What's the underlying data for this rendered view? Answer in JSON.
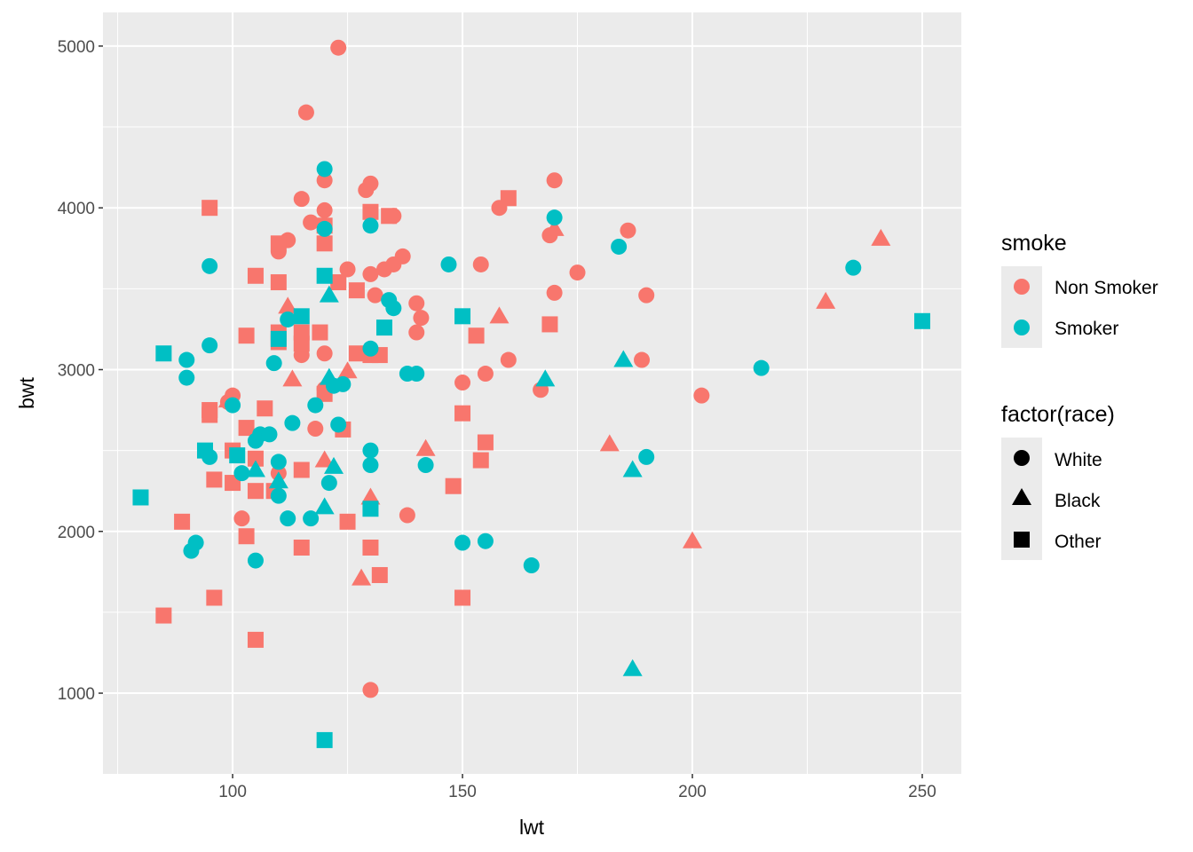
{
  "chart_data": {
    "type": "scatter",
    "title": "",
    "xlabel": "lwt",
    "ylabel": "bwt",
    "xlim": [
      71.8,
      258.5
    ],
    "ylim": [
      501,
      5208
    ],
    "xticks": [
      100,
      150,
      200,
      250
    ],
    "yticks": [
      1000,
      2000,
      3000,
      4000,
      5000
    ],
    "grid": true,
    "legend_position": "right",
    "colors": {
      "Non Smoker": "#F8766D",
      "Smoker": "#00BFC4",
      "panel": "#EBEBEB"
    },
    "legends": [
      {
        "title": "smoke",
        "entries": [
          "Non Smoker",
          "Smoker"
        ]
      },
      {
        "title": "factor(race)",
        "entries": [
          "White",
          "Black",
          "Other"
        ]
      }
    ],
    "point_fields": [
      "lwt",
      "bwt",
      "smoke",
      "race"
    ],
    "points": [
      [
        123,
        4990,
        "Non Smoker",
        "White"
      ],
      [
        116,
        4590,
        "Non Smoker",
        "White"
      ],
      [
        120,
        4170,
        "Non Smoker",
        "White"
      ],
      [
        130,
        4150,
        "Non Smoker",
        "White"
      ],
      [
        129,
        4110,
        "Non Smoker",
        "White"
      ],
      [
        115,
        4055,
        "Non Smoker",
        "White"
      ],
      [
        120,
        3985,
        "Non Smoker",
        "White"
      ],
      [
        117,
        3910,
        "Non Smoker",
        "White"
      ],
      [
        135,
        3950,
        "Non Smoker",
        "White"
      ],
      [
        170,
        4170,
        "Non Smoker",
        "White"
      ],
      [
        158,
        4000,
        "Non Smoker",
        "White"
      ],
      [
        186,
        3860,
        "Non Smoker",
        "White"
      ],
      [
        169,
        3830,
        "Non Smoker",
        "White"
      ],
      [
        112,
        3800,
        "Non Smoker",
        "White"
      ],
      [
        110,
        3730,
        "Non Smoker",
        "White"
      ],
      [
        137,
        3700,
        "Non Smoker",
        "White"
      ],
      [
        135,
        3650,
        "Non Smoker",
        "White"
      ],
      [
        125,
        3620,
        "Non Smoker",
        "White"
      ],
      [
        130,
        3590,
        "Non Smoker",
        "White"
      ],
      [
        133,
        3620,
        "Non Smoker",
        "White"
      ],
      [
        154,
        3650,
        "Non Smoker",
        "White"
      ],
      [
        175,
        3600,
        "Non Smoker",
        "White"
      ],
      [
        170,
        3475,
        "Non Smoker",
        "White"
      ],
      [
        190,
        3460,
        "Non Smoker",
        "White"
      ],
      [
        131,
        3460,
        "Non Smoker",
        "White"
      ],
      [
        140,
        3410,
        "Non Smoker",
        "White"
      ],
      [
        141,
        3320,
        "Non Smoker",
        "White"
      ],
      [
        140,
        3230,
        "Non Smoker",
        "White"
      ],
      [
        115,
        3090,
        "Non Smoker",
        "White"
      ],
      [
        120,
        3100,
        "Non Smoker",
        "White"
      ],
      [
        160,
        3060,
        "Non Smoker",
        "White"
      ],
      [
        189,
        3060,
        "Non Smoker",
        "White"
      ],
      [
        155,
        2975,
        "Non Smoker",
        "White"
      ],
      [
        150,
        2920,
        "Non Smoker",
        "White"
      ],
      [
        167,
        2875,
        "Non Smoker",
        "White"
      ],
      [
        202,
        2840,
        "Non Smoker",
        "White"
      ],
      [
        100,
        2840,
        "Non Smoker",
        "White"
      ],
      [
        99,
        2800,
        "Non Smoker",
        "White"
      ],
      [
        120,
        2880,
        "Non Smoker",
        "White"
      ],
      [
        118,
        2635,
        "Non Smoker",
        "White"
      ],
      [
        102,
        2080,
        "Non Smoker",
        "White"
      ],
      [
        138,
        2100,
        "Non Smoker",
        "White"
      ],
      [
        130,
        1020,
        "Non Smoker",
        "White"
      ],
      [
        110,
        2360,
        "Non Smoker",
        "White"
      ],
      [
        241,
        3810,
        "Non Smoker",
        "Black"
      ],
      [
        229,
        3420,
        "Non Smoker",
        "Black"
      ],
      [
        158,
        3330,
        "Non Smoker",
        "Black"
      ],
      [
        170,
        3870,
        "Non Smoker",
        "Black"
      ],
      [
        182,
        2540,
        "Non Smoker",
        "Black"
      ],
      [
        200,
        1940,
        "Non Smoker",
        "Black"
      ],
      [
        142,
        2510,
        "Non Smoker",
        "Black"
      ],
      [
        130,
        2210,
        "Non Smoker",
        "Black"
      ],
      [
        128,
        1710,
        "Non Smoker",
        "Black"
      ],
      [
        113,
        2940,
        "Non Smoker",
        "Black"
      ],
      [
        112,
        3390,
        "Non Smoker",
        "Black"
      ],
      [
        125,
        2990,
        "Non Smoker",
        "Black"
      ],
      [
        120,
        2440,
        "Non Smoker",
        "Black"
      ],
      [
        99,
        2810,
        "Non Smoker",
        "Black"
      ],
      [
        95,
        4000,
        "Non Smoker",
        "Other"
      ],
      [
        160,
        4060,
        "Non Smoker",
        "Other"
      ],
      [
        130,
        3975,
        "Non Smoker",
        "Other"
      ],
      [
        120,
        3890,
        "Non Smoker",
        "Other"
      ],
      [
        120,
        3780,
        "Non Smoker",
        "Other"
      ],
      [
        110,
        3780,
        "Non Smoker",
        "Other"
      ],
      [
        105,
        3580,
        "Non Smoker",
        "Other"
      ],
      [
        110,
        3540,
        "Non Smoker",
        "Other"
      ],
      [
        123,
        3540,
        "Non Smoker",
        "Other"
      ],
      [
        127,
        3490,
        "Non Smoker",
        "Other"
      ],
      [
        134,
        3950,
        "Non Smoker",
        "Other"
      ],
      [
        169,
        3280,
        "Non Smoker",
        "Other"
      ],
      [
        153,
        3210,
        "Non Smoker",
        "Other"
      ],
      [
        103,
        3210,
        "Non Smoker",
        "Other"
      ],
      [
        110,
        3230,
        "Non Smoker",
        "Other"
      ],
      [
        115,
        3230,
        "Non Smoker",
        "Other"
      ],
      [
        115,
        3160,
        "Non Smoker",
        "Other"
      ],
      [
        119,
        3230,
        "Non Smoker",
        "Other"
      ],
      [
        110,
        3170,
        "Non Smoker",
        "Other"
      ],
      [
        130,
        3090,
        "Non Smoker",
        "Other"
      ],
      [
        132,
        3090,
        "Non Smoker",
        "Other"
      ],
      [
        127,
        3100,
        "Non Smoker",
        "Other"
      ],
      [
        95,
        2750,
        "Non Smoker",
        "Other"
      ],
      [
        95,
        2720,
        "Non Smoker",
        "Other"
      ],
      [
        107,
        2760,
        "Non Smoker",
        "Other"
      ],
      [
        150,
        2730,
        "Non Smoker",
        "Other"
      ],
      [
        120,
        2850,
        "Non Smoker",
        "Other"
      ],
      [
        103,
        2640,
        "Non Smoker",
        "Other"
      ],
      [
        124,
        2630,
        "Non Smoker",
        "Other"
      ],
      [
        105,
        2450,
        "Non Smoker",
        "Other"
      ],
      [
        115,
        2380,
        "Non Smoker",
        "Other"
      ],
      [
        100,
        2500,
        "Non Smoker",
        "Other"
      ],
      [
        100,
        2300,
        "Non Smoker",
        "Other"
      ],
      [
        96,
        2320,
        "Non Smoker",
        "Other"
      ],
      [
        105,
        2250,
        "Non Smoker",
        "Other"
      ],
      [
        109,
        2250,
        "Non Smoker",
        "Other"
      ],
      [
        148,
        2280,
        "Non Smoker",
        "Other"
      ],
      [
        154,
        2440,
        "Non Smoker",
        "Other"
      ],
      [
        155,
        2550,
        "Non Smoker",
        "Other"
      ],
      [
        89,
        2060,
        "Non Smoker",
        "Other"
      ],
      [
        125,
        2060,
        "Non Smoker",
        "Other"
      ],
      [
        103,
        1970,
        "Non Smoker",
        "Other"
      ],
      [
        130,
        1900,
        "Non Smoker",
        "Other"
      ],
      [
        115,
        1900,
        "Non Smoker",
        "Other"
      ],
      [
        132,
        1730,
        "Non Smoker",
        "Other"
      ],
      [
        96,
        1590,
        "Non Smoker",
        "Other"
      ],
      [
        150,
        1590,
        "Non Smoker",
        "Other"
      ],
      [
        85,
        1480,
        "Non Smoker",
        "Other"
      ],
      [
        105,
        1330,
        "Non Smoker",
        "Other"
      ],
      [
        120,
        4240,
        "Smoker",
        "White"
      ],
      [
        130,
        3890,
        "Smoker",
        "White"
      ],
      [
        170,
        3940,
        "Smoker",
        "White"
      ],
      [
        184,
        3760,
        "Smoker",
        "White"
      ],
      [
        235,
        3630,
        "Smoker",
        "White"
      ],
      [
        147,
        3650,
        "Smoker",
        "White"
      ],
      [
        95,
        3640,
        "Smoker",
        "White"
      ],
      [
        134,
        3430,
        "Smoker",
        "White"
      ],
      [
        135,
        3380,
        "Smoker",
        "White"
      ],
      [
        95,
        3150,
        "Smoker",
        "White"
      ],
      [
        90,
        3060,
        "Smoker",
        "White"
      ],
      [
        90,
        2950,
        "Smoker",
        "White"
      ],
      [
        109,
        3040,
        "Smoker",
        "White"
      ],
      [
        130,
        3130,
        "Smoker",
        "White"
      ],
      [
        138,
        2975,
        "Smoker",
        "White"
      ],
      [
        140,
        2975,
        "Smoker",
        "White"
      ],
      [
        215,
        3010,
        "Smoker",
        "White"
      ],
      [
        100,
        2780,
        "Smoker",
        "White"
      ],
      [
        118,
        2780,
        "Smoker",
        "White"
      ],
      [
        106,
        2600,
        "Smoker",
        "White"
      ],
      [
        108,
        2600,
        "Smoker",
        "White"
      ],
      [
        113,
        2670,
        "Smoker",
        "White"
      ],
      [
        123,
        2660,
        "Smoker",
        "White"
      ],
      [
        105,
        2560,
        "Smoker",
        "White"
      ],
      [
        130,
        2500,
        "Smoker",
        "White"
      ],
      [
        130,
        2410,
        "Smoker",
        "White"
      ],
      [
        110,
        2430,
        "Smoker",
        "White"
      ],
      [
        102,
        2360,
        "Smoker",
        "White"
      ],
      [
        95,
        2460,
        "Smoker",
        "White"
      ],
      [
        142,
        2410,
        "Smoker",
        "White"
      ],
      [
        190,
        2460,
        "Smoker",
        "White"
      ],
      [
        121,
        2300,
        "Smoker",
        "White"
      ],
      [
        110,
        2220,
        "Smoker",
        "White"
      ],
      [
        112,
        2080,
        "Smoker",
        "White"
      ],
      [
        117,
        2080,
        "Smoker",
        "White"
      ],
      [
        92,
        1930,
        "Smoker",
        "White"
      ],
      [
        91,
        1880,
        "Smoker",
        "White"
      ],
      [
        105,
        1820,
        "Smoker",
        "White"
      ],
      [
        150,
        1930,
        "Smoker",
        "White"
      ],
      [
        155,
        1940,
        "Smoker",
        "White"
      ],
      [
        165,
        1790,
        "Smoker",
        "White"
      ],
      [
        124,
        2910,
        "Smoker",
        "White"
      ],
      [
        122,
        2900,
        "Smoker",
        "White"
      ],
      [
        112,
        3310,
        "Smoker",
        "White"
      ],
      [
        120,
        3870,
        "Smoker",
        "White"
      ],
      [
        121,
        3460,
        "Smoker",
        "Black"
      ],
      [
        185,
        3060,
        "Smoker",
        "Black"
      ],
      [
        168,
        2940,
        "Smoker",
        "Black"
      ],
      [
        187,
        2380,
        "Smoker",
        "Black"
      ],
      [
        187,
        1150,
        "Smoker",
        "Black"
      ],
      [
        121,
        2950,
        "Smoker",
        "Black"
      ],
      [
        122,
        2400,
        "Smoker",
        "Black"
      ],
      [
        120,
        2150,
        "Smoker",
        "Black"
      ],
      [
        110,
        2310,
        "Smoker",
        "Black"
      ],
      [
        105,
        2380,
        "Smoker",
        "Black"
      ],
      [
        120,
        3580,
        "Smoker",
        "Other"
      ],
      [
        115,
        3330,
        "Smoker",
        "Other"
      ],
      [
        150,
        3330,
        "Smoker",
        "Other"
      ],
      [
        133,
        3260,
        "Smoker",
        "Other"
      ],
      [
        110,
        3190,
        "Smoker",
        "Other"
      ],
      [
        85,
        3100,
        "Smoker",
        "Other"
      ],
      [
        94,
        2500,
        "Smoker",
        "Other"
      ],
      [
        101,
        2470,
        "Smoker",
        "Other"
      ],
      [
        80,
        2210,
        "Smoker",
        "Other"
      ],
      [
        130,
        2140,
        "Smoker",
        "Other"
      ],
      [
        120,
        710,
        "Smoker",
        "Other"
      ],
      [
        250,
        3300,
        "Smoker",
        "Other"
      ]
    ]
  }
}
